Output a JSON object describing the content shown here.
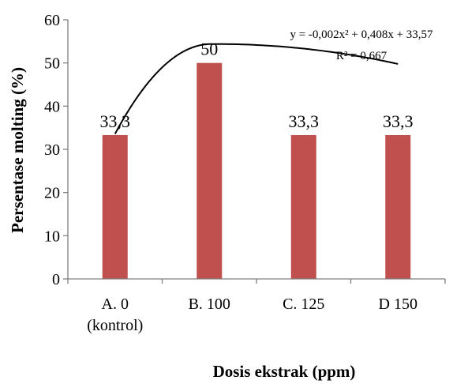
{
  "chart_data": {
    "type": "bar",
    "categories": [
      [
        "A. 0",
        "(kontrol)"
      ],
      [
        "B. 100"
      ],
      [
        "C. 125"
      ],
      [
        "D 150"
      ]
    ],
    "values": [
      33.3,
      50,
      33.3,
      33.3
    ],
    "data_labels": [
      "33,3",
      "50",
      "33,3",
      "33,3"
    ],
    "title": "",
    "xlabel": "Dosis ekstrak (ppm)",
    "ylabel": "Persentase molting (%)",
    "ylim": [
      0,
      60
    ],
    "yticks": [
      0,
      10,
      20,
      30,
      40,
      50,
      60
    ],
    "grid": false,
    "legend": "none",
    "bar_color": "#c0504d",
    "trendline": {
      "type": "polynomial",
      "order": 2,
      "x_values": [
        0,
        100,
        125,
        150
      ],
      "coefficients": [
        -0.002,
        0.408,
        33.57
      ],
      "equation_line1": "y = -0,002x² + 0,408x + 33,57",
      "equation_line2": "R² = 0,667",
      "color": "#000000"
    }
  }
}
